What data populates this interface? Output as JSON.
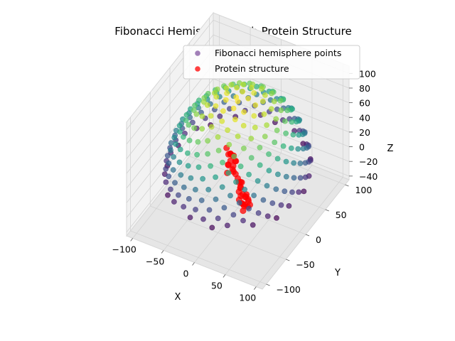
{
  "chart_data": {
    "type": "scatter3d",
    "title": "Fibonacci Hemisphere with Protein Structure",
    "xlabel": "X",
    "ylabel": "Y",
    "zlabel": "Z",
    "xlim": [
      -110,
      110
    ],
    "ylim": [
      -110,
      110
    ],
    "zlim": [
      -45,
      110
    ],
    "xticks": [
      -100,
      -50,
      0,
      50,
      100
    ],
    "yticks": [
      -100,
      -50,
      0,
      50,
      100
    ],
    "zticks": [
      -40,
      -20,
      0,
      20,
      40,
      60,
      80,
      100
    ],
    "legend": {
      "placement": "upper-right"
    },
    "series": [
      {
        "name": "Fibonacci hemisphere points",
        "kind": "fibonacci-hemisphere",
        "radius": 100,
        "count": 260,
        "color_by": "z",
        "colormap": "viridis",
        "legend_color": "#7a4a9a",
        "alpha": 0.7
      },
      {
        "name": "Protein structure",
        "color": "#ff0000",
        "alpha": 0.75,
        "points": [
          [
            -15,
            -5,
            35
          ],
          [
            -10,
            -8,
            30
          ],
          [
            -5,
            -5,
            28
          ],
          [
            -12,
            0,
            25
          ],
          [
            -8,
            2,
            22
          ],
          [
            -15,
            5,
            20
          ],
          [
            -10,
            -3,
            18
          ],
          [
            -5,
            3,
            15
          ],
          [
            -12,
            -6,
            14
          ],
          [
            -8,
            6,
            12
          ],
          [
            -14,
            -2,
            10
          ],
          [
            -6,
            -4,
            8
          ],
          [
            -10,
            4,
            6
          ],
          [
            -12,
            -8,
            4
          ],
          [
            -7,
            0,
            2
          ],
          [
            -5,
            2,
            -2
          ],
          [
            0,
            0,
            -5
          ],
          [
            3,
            -2,
            -8
          ],
          [
            5,
            2,
            -10
          ],
          [
            2,
            4,
            -12
          ],
          [
            6,
            -3,
            -14
          ],
          [
            4,
            1,
            -16
          ],
          [
            5,
            -5,
            -18
          ],
          [
            10,
            -8,
            -20
          ],
          [
            15,
            -5,
            -22
          ],
          [
            8,
            0,
            -24
          ],
          [
            12,
            3,
            -25
          ],
          [
            18,
            -2,
            -26
          ],
          [
            6,
            -6,
            -28
          ],
          [
            14,
            -9,
            -29
          ],
          [
            10,
            5,
            -30
          ],
          [
            16,
            2,
            -32
          ],
          [
            20,
            -6,
            -33
          ],
          [
            8,
            -3,
            -34
          ],
          [
            12,
            -1,
            -36
          ],
          [
            17,
            4,
            -38
          ],
          [
            13,
            -7,
            -40
          ],
          [
            9,
            2,
            -41
          ]
        ]
      }
    ]
  }
}
